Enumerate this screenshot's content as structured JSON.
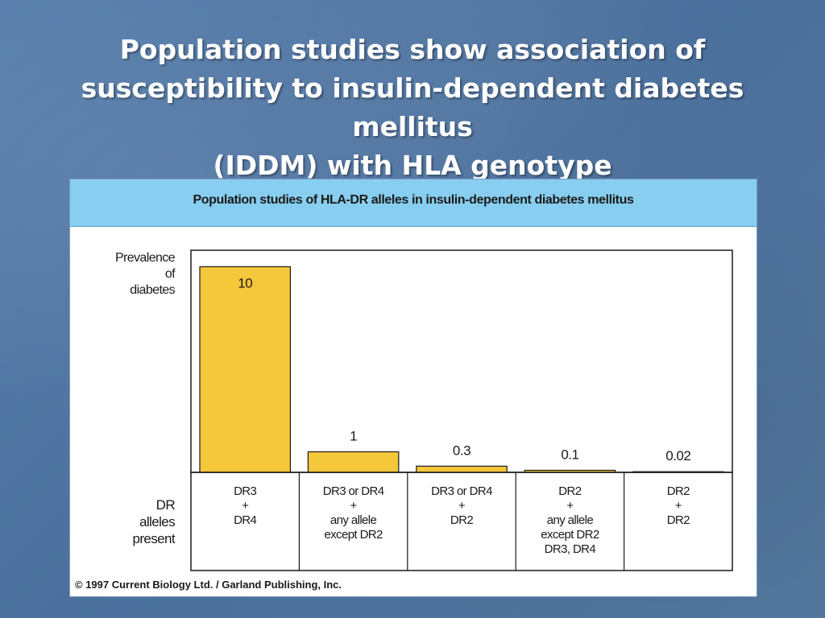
{
  "slide": {
    "title_lines": [
      "Population studies show association of",
      "susceptibility to insulin-dependent diabetes mellitus",
      "(IDDM) with HLA genotype"
    ]
  },
  "figure": {
    "header": "Population studies of HLA-DR alleles in insulin-dependent diabetes mellitus",
    "copyright": "© 1997 Current Biology Ltd. / Garland Publishing, Inc."
  },
  "chart_data": {
    "type": "bar",
    "title": "Population studies of HLA-DR alleles in insulin-dependent diabetes mellitus",
    "ylabel_lines": [
      "Prevalence",
      "of",
      "diabetes"
    ],
    "xlabel_lines": [
      "DR",
      "alleles",
      "present"
    ],
    "categories": [
      [
        "DR3",
        "+",
        "DR4"
      ],
      [
        "DR3 or DR4",
        "+",
        "any allele",
        "except DR2"
      ],
      [
        "DR3 or DR4",
        "+",
        "DR2"
      ],
      [
        "DR2",
        "+",
        "any allele",
        "except DR2",
        "DR3, DR4"
      ],
      [
        "DR2",
        "+",
        "DR2"
      ]
    ],
    "values": [
      10,
      1,
      0.3,
      0.1,
      0.02
    ],
    "value_labels": [
      "10",
      "1",
      "0.3",
      "0.1",
      "0.02"
    ],
    "ylim": [
      0,
      10.8
    ],
    "grid": false,
    "legend": "none",
    "bar_color": "#f5c73a",
    "bar_edge_color": "#1a1a1a"
  }
}
